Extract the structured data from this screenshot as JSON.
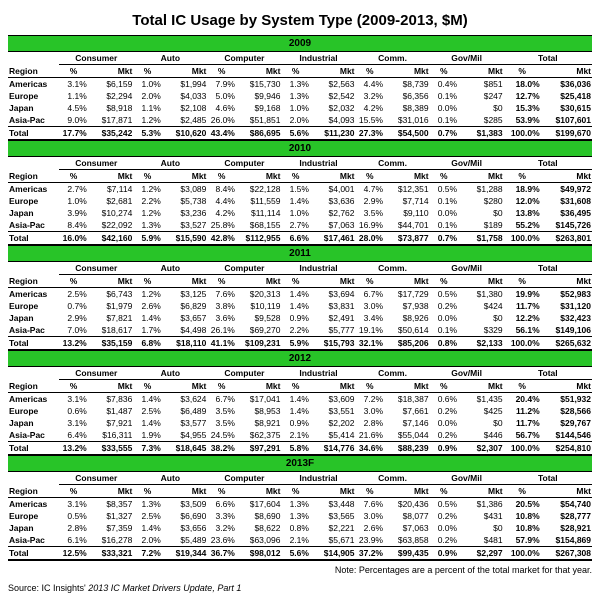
{
  "title": "Total IC Usage by System Type (2009-2013, $M)",
  "note": "Note: Percentages are a percent of the total market for that year.",
  "source_prefix": "Source: IC Insights' ",
  "source_italic": "2013 IC Market Drivers Update, Part 1",
  "region_label": "Region",
  "groups": [
    "Consumer",
    "Auto",
    "Computer",
    "Industrial",
    "Comm.",
    "Gov/Mil",
    "Total"
  ],
  "cols": [
    "%",
    "Mkt"
  ],
  "regions": [
    "Americas",
    "Europe",
    "Japan",
    "Asia-Pac"
  ],
  "total_label": "Total",
  "years": [
    {
      "year": "2009",
      "rows": [
        [
          "3.1%",
          "$6,159",
          "1.0%",
          "$1,994",
          "7.9%",
          "$15,730",
          "1.3%",
          "$2,563",
          "4.4%",
          "$8,739",
          "0.4%",
          "$851",
          "18.0%",
          "$36,036"
        ],
        [
          "1.1%",
          "$2,294",
          "2.0%",
          "$4,033",
          "5.0%",
          "$9,946",
          "1.3%",
          "$2,542",
          "3.2%",
          "$6,356",
          "0.1%",
          "$247",
          "12.7%",
          "$25,418"
        ],
        [
          "4.5%",
          "$8,918",
          "1.1%",
          "$2,108",
          "4.6%",
          "$9,168",
          "1.0%",
          "$2,032",
          "4.2%",
          "$8,389",
          "0.0%",
          "$0",
          "15.3%",
          "$30,615"
        ],
        [
          "9.0%",
          "$17,871",
          "1.2%",
          "$2,485",
          "26.0%",
          "$51,851",
          "2.0%",
          "$4,093",
          "15.5%",
          "$31,016",
          "0.1%",
          "$285",
          "53.9%",
          "$107,601"
        ]
      ],
      "total": [
        "17.7%",
        "$35,242",
        "5.3%",
        "$10,620",
        "43.4%",
        "$86,695",
        "5.6%",
        "$11,230",
        "27.3%",
        "$54,500",
        "0.7%",
        "$1,383",
        "100.0%",
        "$199,670"
      ]
    },
    {
      "year": "2010",
      "rows": [
        [
          "2.7%",
          "$7,114",
          "1.2%",
          "$3,089",
          "8.4%",
          "$22,128",
          "1.5%",
          "$4,001",
          "4.7%",
          "$12,351",
          "0.5%",
          "$1,288",
          "18.9%",
          "$49,972"
        ],
        [
          "1.0%",
          "$2,681",
          "2.2%",
          "$5,738",
          "4.4%",
          "$11,559",
          "1.4%",
          "$3,636",
          "2.9%",
          "$7,714",
          "0.1%",
          "$280",
          "12.0%",
          "$31,608"
        ],
        [
          "3.9%",
          "$10,274",
          "1.2%",
          "$3,236",
          "4.2%",
          "$11,114",
          "1.0%",
          "$2,762",
          "3.5%",
          "$9,110",
          "0.0%",
          "$0",
          "13.8%",
          "$36,495"
        ],
        [
          "8.4%",
          "$22,092",
          "1.3%",
          "$3,527",
          "25.8%",
          "$68,155",
          "2.7%",
          "$7,063",
          "16.9%",
          "$44,701",
          "0.1%",
          "$189",
          "55.2%",
          "$145,726"
        ]
      ],
      "total": [
        "16.0%",
        "$42,160",
        "5.9%",
        "$15,590",
        "42.8%",
        "$112,955",
        "6.6%",
        "$17,461",
        "28.0%",
        "$73,877",
        "0.7%",
        "$1,758",
        "100.0%",
        "$263,801"
      ]
    },
    {
      "year": "2011",
      "rows": [
        [
          "2.5%",
          "$6,743",
          "1.2%",
          "$3,125",
          "7.6%",
          "$20,313",
          "1.4%",
          "$3,694",
          "6.7%",
          "$17,729",
          "0.5%",
          "$1,380",
          "19.9%",
          "$52,983"
        ],
        [
          "0.7%",
          "$1,979",
          "2.6%",
          "$6,829",
          "3.8%",
          "$10,119",
          "1.4%",
          "$3,831",
          "3.0%",
          "$7,938",
          "0.2%",
          "$424",
          "11.7%",
          "$31,120"
        ],
        [
          "2.9%",
          "$7,821",
          "1.4%",
          "$3,657",
          "3.6%",
          "$9,528",
          "0.9%",
          "$2,491",
          "3.4%",
          "$8,926",
          "0.0%",
          "$0",
          "12.2%",
          "$32,423"
        ],
        [
          "7.0%",
          "$18,617",
          "1.7%",
          "$4,498",
          "26.1%",
          "$69,270",
          "2.2%",
          "$5,777",
          "19.1%",
          "$50,614",
          "0.1%",
          "$329",
          "56.1%",
          "$149,106"
        ]
      ],
      "total": [
        "13.2%",
        "$35,159",
        "6.8%",
        "$18,110",
        "41.1%",
        "$109,231",
        "5.9%",
        "$15,793",
        "32.1%",
        "$85,206",
        "0.8%",
        "$2,133",
        "100.0%",
        "$265,632"
      ]
    },
    {
      "year": "2012",
      "rows": [
        [
          "3.1%",
          "$7,836",
          "1.4%",
          "$3,624",
          "6.7%",
          "$17,041",
          "1.4%",
          "$3,609",
          "7.2%",
          "$18,387",
          "0.6%",
          "$1,435",
          "20.4%",
          "$51,932"
        ],
        [
          "0.6%",
          "$1,487",
          "2.5%",
          "$6,489",
          "3.5%",
          "$8,953",
          "1.4%",
          "$3,551",
          "3.0%",
          "$7,661",
          "0.2%",
          "$425",
          "11.2%",
          "$28,566"
        ],
        [
          "3.1%",
          "$7,921",
          "1.4%",
          "$3,577",
          "3.5%",
          "$8,921",
          "0.9%",
          "$2,202",
          "2.8%",
          "$7,146",
          "0.0%",
          "$0",
          "11.7%",
          "$29,767"
        ],
        [
          "6.4%",
          "$16,311",
          "1.9%",
          "$4,955",
          "24.5%",
          "$62,375",
          "2.1%",
          "$5,414",
          "21.6%",
          "$55,044",
          "0.2%",
          "$446",
          "56.7%",
          "$144,546"
        ]
      ],
      "total": [
        "13.2%",
        "$33,555",
        "7.3%",
        "$18,645",
        "38.2%",
        "$97,291",
        "5.8%",
        "$14,776",
        "34.6%",
        "$88,239",
        "0.9%",
        "$2,307",
        "100.0%",
        "$254,810"
      ]
    },
    {
      "year": "2013F",
      "rows": [
        [
          "3.1%",
          "$8,357",
          "1.3%",
          "$3,509",
          "6.6%",
          "$17,604",
          "1.3%",
          "$3,448",
          "7.6%",
          "$20,436",
          "0.5%",
          "$1,386",
          "20.5%",
          "$54,740"
        ],
        [
          "0.5%",
          "$1,327",
          "2.5%",
          "$6,690",
          "3.3%",
          "$8,690",
          "1.3%",
          "$3,565",
          "3.0%",
          "$8,077",
          "0.2%",
          "$431",
          "10.8%",
          "$28,777"
        ],
        [
          "2.8%",
          "$7,359",
          "1.4%",
          "$3,656",
          "3.2%",
          "$8,622",
          "0.8%",
          "$2,221",
          "2.6%",
          "$7,063",
          "0.0%",
          "$0",
          "10.8%",
          "$28,921"
        ],
        [
          "6.1%",
          "$16,278",
          "2.0%",
          "$5,489",
          "23.6%",
          "$63,096",
          "2.1%",
          "$5,671",
          "23.9%",
          "$63,858",
          "0.2%",
          "$481",
          "57.9%",
          "$154,869"
        ]
      ],
      "total": [
        "12.5%",
        "$33,321",
        "7.2%",
        "$19,344",
        "36.7%",
        "$98,012",
        "5.6%",
        "$14,905",
        "37.2%",
        "$99,435",
        "0.9%",
        "$2,297",
        "100.0%",
        "$267,308"
      ]
    }
  ]
}
